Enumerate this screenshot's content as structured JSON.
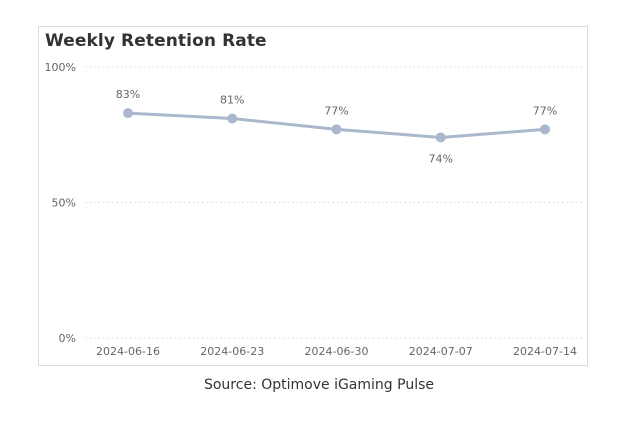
{
  "chart_data": {
    "type": "line",
    "title": "Weekly Retention Rate",
    "xlabel": "",
    "ylabel": "",
    "categories": [
      "2024-06-16",
      "2024-06-23",
      "2024-06-30",
      "2024-07-07",
      "2024-07-14"
    ],
    "series": [
      {
        "values": [
          83,
          81,
          77,
          74,
          77
        ]
      }
    ],
    "data_labels": [
      "83%",
      "81%",
      "77%",
      "74%",
      "77%"
    ],
    "label_positions": [
      "above",
      "above",
      "above",
      "below",
      "above"
    ],
    "yticks": [
      0,
      50,
      100
    ],
    "ytick_labels": [
      "0%",
      "50%",
      "100%"
    ],
    "ylim": [
      0,
      100
    ],
    "grid": "horizontal-dotted",
    "legend": "none",
    "color": "#a9b8cc"
  },
  "source": "Source: Optimove iGaming Pulse"
}
